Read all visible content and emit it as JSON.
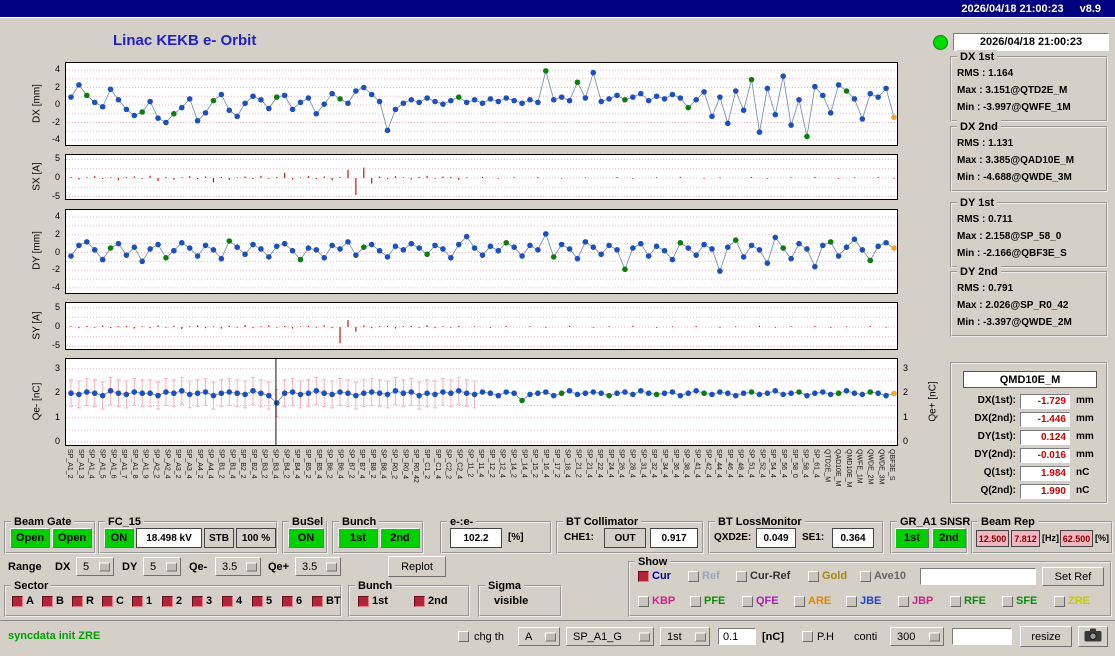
{
  "titlebar": {
    "datetime": "2026/04/18 21:00:23",
    "version": "v8.9"
  },
  "header": {
    "title": "Linac KEKB e- Orbit"
  },
  "status_panel": {
    "led_color": "#00dd00",
    "datetime": "2026/04/18 21:00:23",
    "groups": [
      {
        "title": "DX 1st",
        "rms": "RMS : 1.164",
        "max": "Max : 3.151@QTD2E_M",
        "min": "Min : -3.997@QWFE_1M"
      },
      {
        "title": "DX 2nd",
        "rms": "RMS : 1.131",
        "max": "Max : 3.385@QAD10E_M",
        "min": "Min : -4.688@QWDE_3M"
      },
      {
        "title": "DY 1st",
        "rms": "RMS : 0.711",
        "max": "Max : 2.158@SP_58_0",
        "min": "Min : -2.166@QBF3E_S"
      },
      {
        "title": "DY 2nd",
        "rms": "RMS : 0.791",
        "max": "Max : 2.026@SP_R0_42",
        "min": "Min : -3.397@QWDE_2M"
      }
    ]
  },
  "monitor_panel": {
    "title": "QMD10E_M",
    "rows": [
      {
        "label": "DX(1st):",
        "value": "-1.729",
        "unit": "mm"
      },
      {
        "label": "DX(2nd):",
        "value": "-1.446",
        "unit": "mm"
      },
      {
        "label": "DY(1st):",
        "value": "0.124",
        "unit": "mm"
      },
      {
        "label": "DY(2nd):",
        "value": "-0.016",
        "unit": "mm"
      },
      {
        "label": "Q(1st):",
        "value": "1.984",
        "unit": "nC"
      },
      {
        "label": "Q(2nd):",
        "value": "1.990",
        "unit": "nC"
      }
    ]
  },
  "chart_data": [
    {
      "id": "dx",
      "type": "line-scatter",
      "ylabel": "DX [mm]",
      "ylim": [
        -4.8,
        4.8
      ],
      "ticks": [
        4,
        2,
        0,
        -2,
        -4
      ],
      "grid": [
        4,
        3,
        2,
        1,
        0,
        -1,
        -2,
        -3,
        -4
      ],
      "values": [
        0.9,
        2.3,
        1.1,
        0.3,
        -0.2,
        1.8,
        0.6,
        -0.5,
        -1.2,
        -0.8,
        0.4,
        -1.5,
        -2.0,
        -1.0,
        -0.3,
        0.7,
        -1.8,
        -0.9,
        0.5,
        1.2,
        -0.6,
        -1.3,
        0.2,
        1.0,
        0.6,
        -0.4,
        0.9,
        1.1,
        -0.5,
        0.3,
        0.8,
        -1.0,
        0.1,
        1.3,
        0.7,
        0.2,
        1.6,
        2.0,
        1.2,
        0.4,
        -2.9,
        -0.5,
        0.2,
        0.6,
        0.3,
        0.8,
        0.4,
        0.1,
        0.5,
        0.9,
        0.3,
        0.6,
        0.2,
        0.7,
        0.4,
        0.8,
        0.5,
        0.2,
        0.6,
        0.3,
        3.9,
        0.6,
        0.9,
        0.5,
        2.6,
        0.8,
        3.7,
        0.4,
        0.7,
        1.1,
        0.6,
        0.9,
        1.3,
        0.5,
        1.0,
        0.7,
        1.2,
        0.8,
        -0.3,
        0.6,
        1.5,
        -1.3,
        0.9,
        -2.1,
        1.6,
        -0.6,
        2.9,
        -3.1,
        1.9,
        -1.1,
        3.3,
        -2.3,
        0.6,
        -3.6,
        2.1,
        1.1,
        -0.9,
        2.3,
        1.6,
        0.7,
        -1.6,
        1.3,
        0.9,
        1.9,
        -1.4
      ],
      "green": [
        2,
        9,
        13,
        18,
        26,
        34,
        49,
        60,
        64,
        70,
        78,
        86,
        93,
        98
      ],
      "last_color": "#f5a623"
    },
    {
      "id": "sx",
      "type": "spikes",
      "ylabel": "SX [A]",
      "ylim": [
        -6.2,
        6.2
      ],
      "ticks": [
        5,
        0,
        -5
      ],
      "grid": [
        5,
        2.5,
        0,
        -2.5,
        -5
      ],
      "values": [
        0.3,
        -0.4,
        0.2,
        0.5,
        -0.3,
        0.2,
        -0.6,
        0.3,
        0.4,
        -0.2,
        0.6,
        -0.8,
        0.3,
        -0.4,
        0.2,
        0.5,
        -0.3,
        0.4,
        -1.2,
        0.3,
        -0.5,
        0.2,
        0.4,
        -0.3,
        0.6,
        -0.2,
        0.3,
        1.4,
        -0.4,
        0.2,
        0.5,
        -0.3,
        0.4,
        -0.6,
        0.3,
        2.2,
        -4.6,
        2.8,
        -1.5,
        0.4,
        -0.3,
        0.5,
        0.2,
        -0.4,
        0.3,
        0.6,
        -0.2,
        0.4,
        0.3,
        -0.5,
        0.2,
        0,
        0.3,
        0,
        -0.2,
        0,
        0.2,
        0,
        0,
        0.3,
        0,
        0,
        -0.2,
        0,
        0,
        0.2,
        0,
        0,
        0,
        0.3,
        0,
        -0.2,
        0,
        0,
        0.2,
        0,
        0,
        0.3,
        0,
        0,
        -0.2,
        0,
        0.2,
        0,
        0,
        0,
        0.3,
        0,
        -0.2,
        0,
        0,
        0.2,
        0,
        0,
        0.3,
        0,
        0,
        -0.2,
        0,
        0.2,
        0,
        0,
        0.3,
        0,
        -0.2
      ]
    },
    {
      "id": "dy",
      "type": "line-scatter",
      "ylabel": "DY [mm]",
      "ylim": [
        -4.8,
        4.8
      ],
      "ticks": [
        4,
        2,
        0,
        -2,
        -4
      ],
      "grid": [
        4,
        3,
        2,
        1,
        0,
        -1,
        -2,
        -3,
        -4
      ],
      "values": [
        -0.4,
        0.8,
        1.2,
        0.3,
        -0.8,
        0.5,
        1.0,
        -0.3,
        0.6,
        -1.0,
        0.4,
        0.9,
        -0.6,
        0.2,
        1.1,
        0.5,
        -0.4,
        0.8,
        0.3,
        -0.7,
        1.3,
        0.6,
        -0.2,
        0.9,
        0.4,
        -0.5,
        0.7,
        1.0,
        0.2,
        -0.8,
        0.5,
        0.3,
        -0.6,
        0.8,
        0.4,
        1.2,
        -0.3,
        0.6,
        0.9,
        0.2,
        -0.5,
        0.7,
        0.3,
        1.0,
        0.5,
        -0.2,
        0.8,
        0.4,
        -0.6,
        0.9,
        1.8,
        0.5,
        -0.3,
        0.7,
        0.2,
        1.1,
        0.6,
        -0.4,
        0.8,
        0.3,
        2.1,
        -0.5,
        0.9,
        0.4,
        -0.7,
        1.2,
        0.6,
        -0.2,
        0.8,
        0.3,
        -1.9,
        0.5,
        1.0,
        -0.4,
        0.7,
        0.2,
        -0.8,
        1.1,
        0.5,
        -0.3,
        0.9,
        0.4,
        -2.1,
        0.6,
        1.4,
        -0.5,
        0.8,
        0.3,
        -1.2,
        1.7,
        0.5,
        -0.7,
        1.0,
        0.4,
        -1.6,
        0.8,
        1.2,
        -0.4,
        0.6,
        1.5,
        0.3,
        -0.9,
        0.7,
        1.1,
        0.5
      ],
      "green": [
        5,
        12,
        20,
        29,
        37,
        45,
        55,
        61,
        70,
        77,
        84,
        90,
        96,
        101
      ],
      "last_color": "#f5a623"
    },
    {
      "id": "sy",
      "type": "spikes",
      "ylabel": "SY [A]",
      "ylim": [
        -6.2,
        6.2
      ],
      "ticks": [
        5,
        0,
        -5
      ],
      "grid": [
        5,
        2.5,
        0,
        -2.5,
        -5
      ],
      "values": [
        0.2,
        -0.3,
        0.3,
        -0.2,
        0.4,
        -0.3,
        0.2,
        0.3,
        -0.4,
        0.2,
        -0.3,
        0.4,
        -0.2,
        0.3,
        -0.5,
        0.2,
        0.4,
        -0.3,
        0.2,
        -0.4,
        0.3,
        -0.2,
        0.5,
        -0.3,
        0.2,
        0.4,
        -0.2,
        0.3,
        -0.4,
        0.2,
        0.3,
        -0.2,
        0.4,
        -0.3,
        -4.2,
        1.8,
        -1.2,
        0.4,
        -0.3,
        0.2,
        0.3,
        -0.4,
        0.2,
        0.3,
        -0.2,
        0.4,
        -0.3,
        0.2,
        -0.2,
        0.3,
        0,
        0.2,
        0,
        -0.2,
        0,
        0.3,
        0,
        0,
        0.2,
        0,
        -0.2,
        0,
        0,
        0.3,
        0,
        0,
        -0.2,
        0,
        0.2,
        0,
        0,
        0.3,
        0,
        0,
        -0.2,
        0,
        0.2,
        0,
        0,
        0.3,
        0,
        0,
        -0.2,
        0,
        0.2,
        0,
        0,
        0.3,
        0,
        -0.2,
        0,
        0.2,
        0,
        0,
        0.3,
        0,
        -0.2,
        0,
        0.2,
        0,
        0,
        0.3,
        0,
        -0.2,
        0
      ]
    },
    {
      "id": "qe",
      "type": "line-scatter",
      "ylabel": "Qe- [nC]",
      "ylabel_right": "Qe+ [nC]",
      "ylim": [
        -0.2,
        3.4
      ],
      "ticks": [
        3,
        2,
        1,
        0
      ],
      "grid": [
        3,
        2.5,
        2,
        1.5,
        1,
        0.5,
        0
      ],
      "errbar_until": 52,
      "errbar_size": 0.55,
      "cursor_frac": 0.252,
      "values": [
        2.0,
        1.95,
        2.05,
        2.0,
        1.9,
        2.1,
        2.0,
        1.95,
        2.05,
        2.0,
        2.0,
        1.9,
        2.05,
        2.0,
        2.1,
        1.95,
        2.0,
        2.05,
        1.9,
        2.0,
        2.05,
        2.0,
        1.95,
        2.1,
        2.0,
        1.9,
        1.6,
        2.0,
        2.05,
        1.95,
        2.0,
        2.1,
        2.0,
        1.95,
        2.05,
        2.0,
        1.9,
        2.0,
        2.05,
        2.0,
        1.95,
        2.1,
        2.0,
        2.05,
        1.9,
        2.0,
        1.95,
        2.05,
        2.0,
        2.1,
        2.0,
        1.95,
        2.05,
        2.0,
        1.9,
        2.05,
        2.0,
        1.7,
        1.95,
        2.0,
        2.05,
        1.9,
        2.0,
        2.1,
        1.95,
        2.0,
        2.05,
        2.0,
        1.9,
        2.0,
        2.05,
        1.95,
        2.1,
        2.0,
        1.95,
        2.0,
        2.05,
        1.9,
        2.0,
        2.1,
        2.0,
        1.95,
        2.05,
        2.0,
        1.9,
        2.0,
        2.05,
        1.95,
        2.0,
        2.1,
        1.95,
        2.0,
        2.05,
        1.9,
        2.0,
        2.05,
        1.95,
        2.0,
        2.1,
        2.0,
        1.95,
        2.05,
        2.0,
        1.9,
        1.99
      ],
      "green": [
        57,
        62,
        68,
        74,
        80,
        86,
        92,
        97,
        101
      ],
      "last_color": "#f5a623"
    }
  ],
  "element_labels": [
    "SP_A1_2",
    "SP_A1_3",
    "SP_A1_4",
    "SP_A1_5",
    "SP_A1_6",
    "SP_A1_7",
    "SP_A1_8",
    "SP_A1_9",
    "SP_A2_2",
    "SP_A2_4",
    "SP_A3_2",
    "SP_A3_4",
    "SP_A4_2",
    "SP_A4_4",
    "SP_B1_2",
    "SP_B1_4",
    "SP_B2_2",
    "SP_B2_4",
    "SP_B3_2",
    "SP_B3_4",
    "SP_B4_2",
    "SP_B4_4",
    "SP_B5_2",
    "SP_B5_4",
    "SP_B6_2",
    "SP_B6_4",
    "SP_B7_2",
    "SP_B7_4",
    "SP_B8_2",
    "SP_B8_4",
    "SP_R0_2",
    "SP_R0_4",
    "SP_R0_42",
    "SP_C1_2",
    "SP_C1_4",
    "SP_C2_2",
    "SP_C2_4",
    "SP_11_2",
    "SP_11_4",
    "SP_12_2",
    "SP_12_4",
    "SP_14_2",
    "SP_14_4",
    "SP_15_2",
    "SP_16_4",
    "SP_17_2",
    "SP_18_4",
    "SP_21_2",
    "SP_21_4",
    "SP_22_4",
    "SP_24_4",
    "SP_26_4",
    "SP_28_4",
    "SP_31_4",
    "SP_32_4",
    "SP_34_4",
    "SP_36_4",
    "SP_38_4",
    "SP_41_4",
    "SP_42_4",
    "SP_44_4",
    "SP_46_4",
    "SP_48_4",
    "SP_51_4",
    "SP_52_4",
    "SP_54_4",
    "SP_56_4",
    "SP_58_0",
    "SP_58_4",
    "SP_61_4",
    "QTD2E_M",
    "QAD10E_M",
    "QMD10E_M",
    "QWFE_1M",
    "QWDE_2M",
    "QWDE_3M",
    "QBF3E_S"
  ],
  "controls": {
    "beam_gate": {
      "title": "Beam Gate",
      "open1": "Open",
      "open2": "Open"
    },
    "fc15": {
      "title": "FC_15",
      "on": "ON",
      "kv": "18.498 kV",
      "stb": "STB",
      "pct": "100 %"
    },
    "busel": {
      "title": "BuSel",
      "on": "ON"
    },
    "bunch_top": {
      "title": "Bunch",
      "b1": "1st",
      "b2": "2nd"
    },
    "ee": {
      "title": "e-:e-",
      "value": "102.2",
      "unit": "[%]"
    },
    "bt_collimator": {
      "title": "BT Collimator",
      "che1_label": "CHE1:",
      "che1_state": "OUT",
      "che1_value": "0.917"
    },
    "bt_lossmonitor": {
      "title": "BT LossMonitor",
      "qxd2e_label": "QXD2E:",
      "qxd2e_value": "0.049",
      "se1_label": "SE1:",
      "se1_value": "0.364"
    },
    "gr_a1_snsr": {
      "title": "GR_A1 SNSR",
      "b1": "1st",
      "b2": "2nd"
    },
    "beam_rep": {
      "title": "Beam Rep",
      "v1": "12.500",
      "v2": "7.812",
      "hz": "[Hz]",
      "v3": "62.500",
      "pct": "[%]"
    },
    "range": {
      "title": "Range",
      "dx_label": "DX",
      "dx_value": "5",
      "dy_label": "DY",
      "dy_value": "5",
      "qem_label": "Qe-",
      "qem_value": "3.5",
      "qep_label": "Qe+",
      "qep_value": "3.5",
      "replot": "Replot"
    },
    "sector": {
      "title": "Sector",
      "items": [
        "A",
        "B",
        "R",
        "C",
        "1",
        "2",
        "3",
        "4",
        "5",
        "6",
        "BT"
      ]
    },
    "bunch_bottom": {
      "title": "Bunch",
      "b1": "1st",
      "b2": "2nd"
    },
    "sigma": {
      "title": "Sigma",
      "visible": "visible"
    },
    "show": {
      "title": "Show",
      "set_ref": "Set Ref",
      "row1": [
        {
          "label": "Cur",
          "color": "#000099"
        },
        {
          "label": "Ref",
          "color": "#97a7c6"
        },
        {
          "label": "Cur-Ref",
          "color": "#333333"
        },
        {
          "label": "Gold",
          "color": "#a8860a"
        },
        {
          "label": "Ave10",
          "color": "#666666"
        }
      ],
      "row2": [
        {
          "label": "KBP",
          "color": "#cc2288"
        },
        {
          "label": "PFE",
          "color": "#118811"
        },
        {
          "label": "QFE",
          "color": "#aa22aa"
        },
        {
          "label": "ARE",
          "color": "#dd8800"
        },
        {
          "label": "JBE",
          "color": "#2244cc"
        },
        {
          "label": "JBP",
          "color": "#cc2288"
        },
        {
          "label": "RFE",
          "color": "#118811"
        },
        {
          "label": "SFE",
          "color": "#118811"
        },
        {
          "label": "ZRE",
          "color": "#c8c800"
        }
      ]
    }
  },
  "statusbar": {
    "message": "syncdata init ZRE",
    "chg_th": "chg th",
    "dd_a": "A",
    "dd_sp": "SP_A1_G",
    "dd_1st": "1st",
    "threshold": "0.1",
    "nc_unit": "[nC]",
    "ph": "P.H",
    "conti": "conti",
    "dd_300": "300",
    "resize": "resize"
  }
}
